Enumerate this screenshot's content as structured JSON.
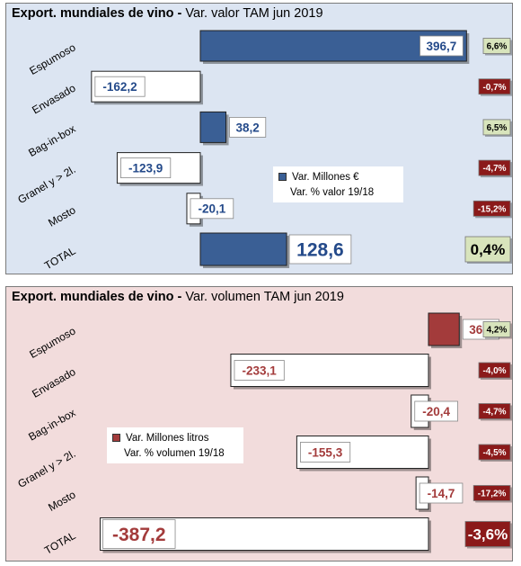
{
  "colors": {
    "value_bar": "#3a5f95",
    "volume_bar": "#a33b3b",
    "pct_positive_bg": "#d8e4bc",
    "pct_negative_bg": "#8b1a1a",
    "value_label": "#244a8a",
    "volume_label": "#a33b3b"
  },
  "chart_data": [
    {
      "type": "bar",
      "orientation": "horizontal",
      "title_bold": "Export. mundiales de vino -",
      "title_rest": " Var. valor TAM jun 2019",
      "categories": [
        "Espumoso",
        "Envasado",
        "Bag-in-box",
        "Granel y > 2l.",
        "Mosto",
        "TOTAL"
      ],
      "series": [
        {
          "name": "Var. Millones €",
          "values": [
            396.7,
            -162.2,
            38.2,
            -123.9,
            -20.1,
            128.6
          ],
          "labels": [
            "396,7",
            "-162,2",
            "38,2",
            "-123,9",
            "-20,1",
            "128,6"
          ]
        },
        {
          "name": "Var. % valor 19/18",
          "values": [
            6.6,
            -0.7,
            6.5,
            -4.7,
            -15.2,
            0.4
          ],
          "labels": [
            "6,6%",
            "-0,7%",
            "6,5%",
            "-4,7%",
            "-15,2%",
            "0,4%"
          ]
        }
      ],
      "legend_position": "center-right"
    },
    {
      "type": "bar",
      "orientation": "horizontal",
      "title_bold": "Export. mundiales de vino -",
      "title_rest": " Var. volumen TAM jun 2019",
      "categories": [
        "Espumoso",
        "Envasado",
        "Bag-in-box",
        "Granel y > 2l.",
        "Mosto",
        "TOTAL"
      ],
      "series": [
        {
          "name": "Var. Millones litros",
          "values": [
            36.3,
            -233.1,
            -20.4,
            -155.3,
            -14.7,
            -387.2
          ],
          "labels": [
            "36,3",
            "-233,1",
            "-20,4",
            "-155,3",
            "-14,7",
            "-387,2"
          ]
        },
        {
          "name": "Var. % volumen 19/18",
          "values": [
            4.2,
            -4.0,
            -4.7,
            -4.5,
            -17.2,
            -3.6
          ],
          "labels": [
            "4,2%",
            "-4,0%",
            "-4,7%",
            "-4,5%",
            "-17,2%",
            "-3,6%"
          ]
        }
      ],
      "legend_position": "center-left"
    }
  ]
}
